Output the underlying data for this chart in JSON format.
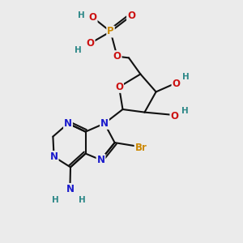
{
  "bg_color": "#ebebeb",
  "colors": {
    "N": "#1a1acc",
    "O": "#cc1111",
    "P": "#cc8800",
    "Br": "#cc8800",
    "H": "#2d8888",
    "bond": "#111111"
  },
  "fs": 8.5,
  "fsh": 7.5,
  "lw": 1.5
}
